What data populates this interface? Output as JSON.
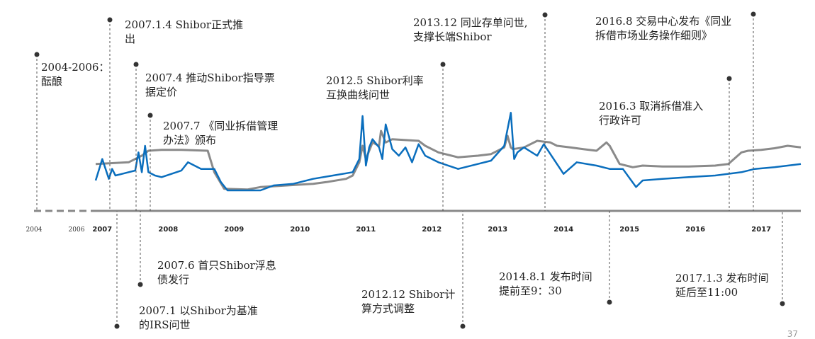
{
  "chart_data": {
    "type": "line",
    "title": "",
    "xlabel": "",
    "ylabel": "",
    "x_ticks": [
      "2004",
      "2006",
      "2007",
      "2008",
      "2009",
      "2010",
      "2011",
      "2012",
      "2013",
      "2014",
      "2015",
      "2016",
      "2017"
    ],
    "x_range": [
      2007.0,
      2017.7
    ],
    "pre_period_dashed": [
      "2004",
      "2006"
    ],
    "grid": false,
    "legend": "none",
    "series": [
      {
        "color": "#8a8a8a",
        "x": [
          2007.0,
          2007.5,
          2007.7,
          2007.8,
          2008.0,
          2008.3,
          2008.7,
          2008.8,
          2008.95,
          2009.3,
          2009.5,
          2009.9,
          2010.3,
          2010.5,
          2010.8,
          2010.9,
          2011.0,
          2011.05,
          2011.1,
          2011.2,
          2011.3,
          2011.33,
          2011.4,
          2011.5,
          2011.9,
          2012.0,
          2012.2,
          2012.5,
          2012.8,
          2013.0,
          2013.2,
          2013.25,
          2013.3,
          2013.33,
          2013.5,
          2013.7,
          2013.9,
          2014.0,
          2014.2,
          2014.4,
          2014.6,
          2014.75,
          2014.8,
          2014.95,
          2015.15,
          2015.3,
          2015.6,
          2016.0,
          2016.4,
          2016.6,
          2016.8,
          2016.9,
          2017.1,
          2017.3,
          2017.5,
          2017.7
        ],
        "y": [
          2.5,
          2.6,
          3.0,
          3.3,
          3.35,
          3.35,
          3.3,
          2.0,
          1.0,
          0.95,
          1.1,
          1.2,
          1.3,
          1.4,
          1.6,
          1.8,
          2.6,
          3.6,
          2.8,
          3.8,
          3.6,
          4.5,
          3.8,
          4.0,
          3.9,
          3.6,
          3.2,
          2.9,
          3.0,
          3.1,
          3.5,
          4.2,
          3.5,
          3.4,
          3.5,
          3.9,
          3.8,
          3.6,
          3.5,
          3.4,
          3.3,
          3.8,
          3.6,
          2.5,
          2.3,
          2.4,
          2.35,
          2.35,
          2.4,
          2.5,
          3.2,
          3.3,
          3.35,
          3.45,
          3.6,
          3.5
        ]
      },
      {
        "color": "#0a6ebd",
        "x": [
          2007.0,
          2007.1,
          2007.2,
          2007.25,
          2007.3,
          2007.4,
          2007.5,
          2007.6,
          2007.65,
          2007.7,
          2007.75,
          2007.8,
          2007.9,
          2008.0,
          2008.3,
          2008.4,
          2008.6,
          2008.8,
          2008.9,
          2009.0,
          2009.5,
          2009.7,
          2010.0,
          2010.3,
          2010.6,
          2010.9,
          2011.0,
          2011.05,
          2011.1,
          2011.15,
          2011.2,
          2011.3,
          2011.35,
          2011.4,
          2011.5,
          2011.6,
          2011.7,
          2011.8,
          2011.9,
          2012.0,
          2012.2,
          2012.5,
          2012.8,
          2013.0,
          2013.2,
          2013.3,
          2013.35,
          2013.4,
          2013.5,
          2013.7,
          2013.8,
          2014.0,
          2014.1,
          2014.3,
          2014.6,
          2014.8,
          2015.0,
          2015.2,
          2015.3,
          2015.6,
          2016.0,
          2016.4,
          2016.8,
          2017.0,
          2017.3,
          2017.5,
          2017.7
        ],
        "y": [
          1.5,
          2.8,
          1.6,
          2.2,
          1.8,
          1.9,
          2.0,
          2.1,
          3.2,
          2.0,
          3.6,
          2.0,
          1.8,
          1.7,
          2.1,
          2.6,
          2.2,
          2.2,
          1.4,
          0.9,
          0.9,
          1.2,
          1.3,
          1.6,
          1.8,
          2.0,
          2.8,
          5.4,
          2.4,
          3.5,
          4.0,
          3.5,
          2.8,
          4.9,
          3.4,
          3.0,
          3.5,
          2.6,
          3.7,
          3.0,
          2.6,
          2.2,
          2.5,
          2.7,
          3.6,
          5.6,
          2.8,
          3.2,
          3.5,
          3.0,
          3.7,
          2.5,
          1.9,
          2.6,
          2.4,
          2.2,
          2.2,
          1.1,
          1.5,
          1.6,
          1.7,
          1.8,
          2.0,
          2.2,
          2.3,
          2.4,
          2.5
        ]
      }
    ],
    "annotations": [
      {
        "lines": [
          "2004-2006：",
          "酝酿"
        ],
        "x": 2004,
        "side": "top"
      },
      {
        "lines": [
          "2007.1.4  Shibor正式推",
          "出"
        ],
        "x": 2007.2,
        "side": "top"
      },
      {
        "lines": [
          "2007.4 推动Shibor指导票",
          "据定价"
        ],
        "x": 2007.6,
        "side": "top"
      },
      {
        "lines": [
          "2007.7 《同业拆借管理",
          "办法》颁布"
        ],
        "x": 2007.8,
        "side": "top"
      },
      {
        "lines": [
          "2012.5 Shibor利率",
          "互换曲线问世"
        ],
        "x": 2012.25,
        "side": "top"
      },
      {
        "lines": [
          "2013.12  同业存单问世,",
          "支撑长端Shibor"
        ],
        "x": 2013.8,
        "side": "top"
      },
      {
        "lines": [
          "2016.3 取消拆借准入",
          "行政许可"
        ],
        "x": 2016.5,
        "side": "top"
      },
      {
        "lines": [
          "2016.8 交易中心发布《同业",
          "拆借市场业务操作细则》"
        ],
        "x": 2016.85,
        "side": "top"
      },
      {
        "lines": [
          "2007.6 首只Shibor浮息",
          "债发行"
        ],
        "x": 2007.65,
        "side": "bottom"
      },
      {
        "lines": [
          "2007.1 以Shibor为基准",
          "的IRS问世"
        ],
        "x": 2007.3,
        "side": "bottom"
      },
      {
        "lines": [
          "2012.12  Shibor计",
          "算方式调整"
        ],
        "x": 2012.5,
        "side": "bottom"
      },
      {
        "lines": [
          "2014.8.1  发布时间",
          "提前至9：30"
        ],
        "x": 2014.7,
        "side": "bottom"
      },
      {
        "lines": [
          "2017.1.3 发布时间",
          "延后至11:00"
        ],
        "x": 2017.45,
        "side": "bottom"
      }
    ]
  },
  "page_number": "37"
}
